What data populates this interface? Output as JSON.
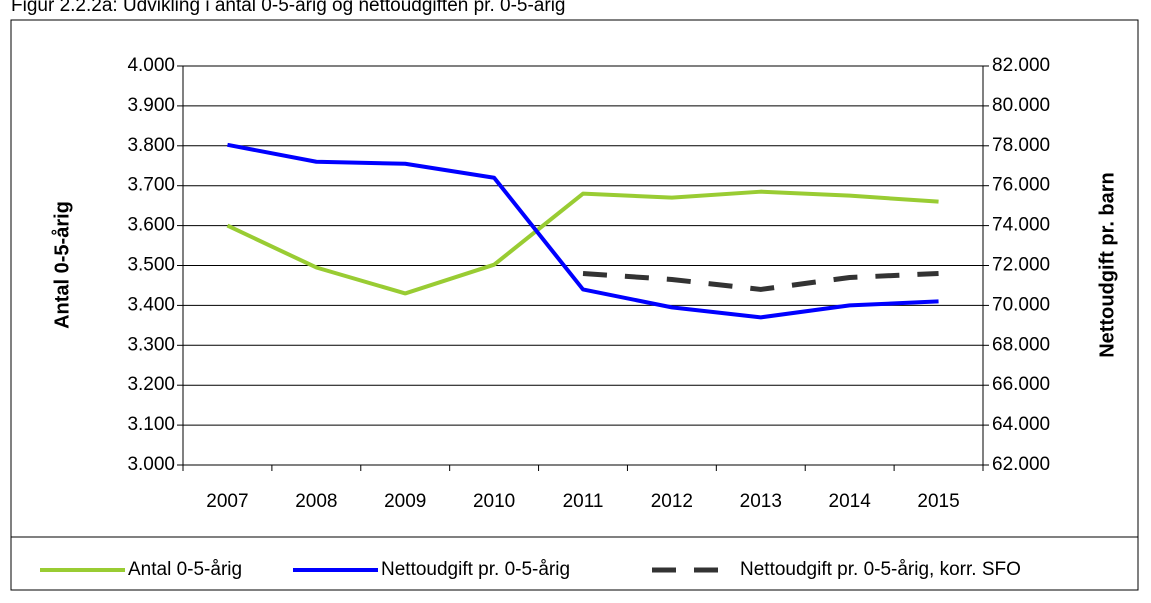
{
  "chart_data": {
    "type": "line",
    "title": "Figur 2.2.2a: Udvikling i antal 0-5-årig og nettoudgiften pr. 0-5-årig",
    "ylabel": "Antal 0-5-årig",
    "y2label": "Nettoudgift pr. barn",
    "categories": [
      "2007",
      "2008",
      "2009",
      "2010",
      "2011",
      "2012",
      "2013",
      "2014",
      "2015"
    ],
    "series": [
      {
        "name": "Antal 0-5-årig",
        "color": "#99cc33",
        "values": [
          3600,
          3495,
          3430,
          3502,
          3680,
          3670,
          3685,
          3675,
          3660
        ]
      },
      {
        "name": "Nettoudgift pr. 0-5-årig",
        "color": "#0000ff",
        "axis": "y2",
        "values": [
          78050,
          77200,
          77100,
          76400,
          70800,
          69900,
          69400,
          70000,
          70200
        ]
      },
      {
        "name": "Nettoudgift pr. 0-5-årig, korr. SFO",
        "color": "#333333",
        "axis": "y2",
        "dashed": true,
        "values": [
          null,
          null,
          null,
          null,
          71600,
          71300,
          70800,
          71400,
          71600
        ]
      }
    ],
    "ylim": [
      3000,
      4000
    ],
    "yticks": [
      {
        "value": 3000,
        "label": "3.000"
      },
      {
        "value": 3100,
        "label": "3.100"
      },
      {
        "value": 3200,
        "label": "3.200"
      },
      {
        "value": 3300,
        "label": "3.300"
      },
      {
        "value": 3400,
        "label": "3.400"
      },
      {
        "value": 3500,
        "label": "3.500"
      },
      {
        "value": 3600,
        "label": "3.600"
      },
      {
        "value": 3700,
        "label": "3.700"
      },
      {
        "value": 3800,
        "label": "3.800"
      },
      {
        "value": 3900,
        "label": "3.900"
      },
      {
        "value": 4000,
        "label": "4.000"
      }
    ],
    "y2lim": [
      62000,
      82000
    ],
    "y2ticks": [
      {
        "value": 62000,
        "label": "62.000"
      },
      {
        "value": 64000,
        "label": "64.000"
      },
      {
        "value": 66000,
        "label": "66.000"
      },
      {
        "value": 68000,
        "label": "68.000"
      },
      {
        "value": 70000,
        "label": "70.000"
      },
      {
        "value": 72000,
        "label": "72.000"
      },
      {
        "value": 74000,
        "label": "74.000"
      },
      {
        "value": 76000,
        "label": "76.000"
      },
      {
        "value": 78000,
        "label": "78.000"
      },
      {
        "value": 80000,
        "label": "80.000"
      },
      {
        "value": 82000,
        "label": "82.000"
      }
    ],
    "grid": true,
    "legend": "bottom"
  }
}
